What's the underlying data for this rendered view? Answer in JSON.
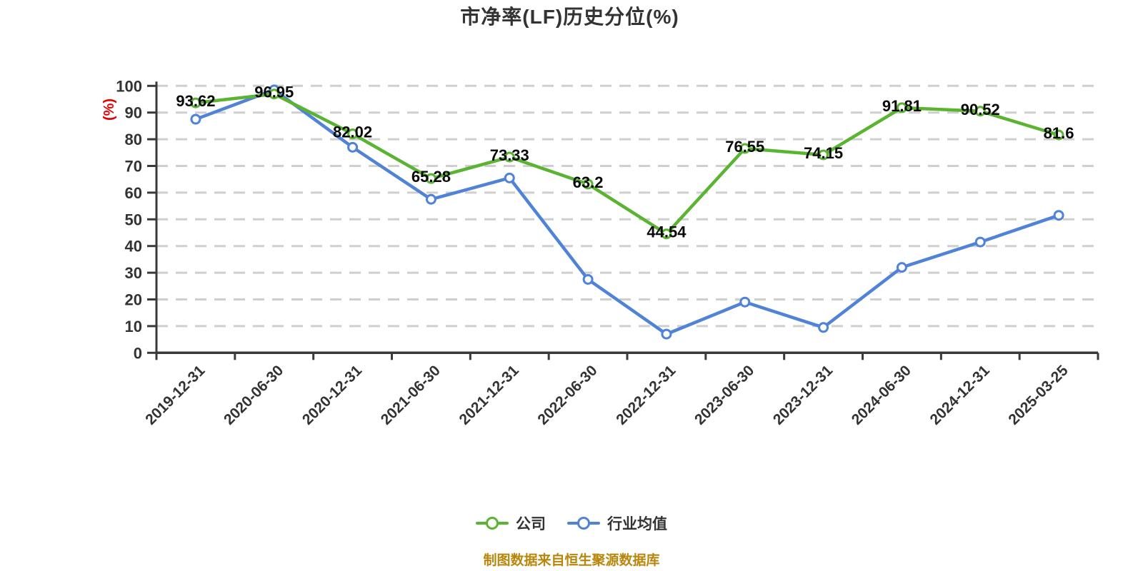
{
  "title": "市净率(LF)历史分位(%)",
  "y_axis_unit": "(%)",
  "footer": "制图数据来自恒生聚源数据库",
  "colors": {
    "company_line": "#5ab432",
    "industry_line": "#5083d8",
    "marker_fill": "#ffffff",
    "title_text": "#333333",
    "axis_line": "#3a3a3a",
    "tick_label": "#333333",
    "data_label": "#0a0a0a",
    "gridline": "#cfcfcf",
    "y_unit_text": "#e60000",
    "footer_text": "#b8860b",
    "background": "#ffffff"
  },
  "chart_data": {
    "type": "line",
    "title": "市净率(LF)历史分位(%)",
    "ylabel": "(%)",
    "ylim": [
      0,
      100
    ],
    "y_ticks": [
      0,
      10,
      20,
      30,
      40,
      50,
      60,
      70,
      80,
      90,
      100
    ],
    "grid": "horizontal-dashed",
    "legend_position": "bottom",
    "x_label_rotation": 45,
    "categories": [
      "2019-12-31",
      "2020-06-30",
      "2020-12-31",
      "2021-06-30",
      "2021-12-31",
      "2022-06-30",
      "2022-12-31",
      "2023-06-30",
      "2023-12-31",
      "2024-06-30",
      "2024-12-31",
      "2025-03-25"
    ],
    "series": [
      {
        "name": "公司",
        "color": "#5ab432",
        "values": [
          93.62,
          96.95,
          82.02,
          65.28,
          73.33,
          63.2,
          44.54,
          76.55,
          74.15,
          91.81,
          90.52,
          81.6
        ],
        "point_labels": [
          "93.62",
          "96.95",
          "82.02",
          "65.28",
          "73.33",
          "63.2",
          "44.54",
          "76.55",
          "74.15",
          "91.81",
          "90.52",
          "81.6"
        ]
      },
      {
        "name": "行业均值",
        "color": "#5083d8",
        "values": [
          87.5,
          98.5,
          77,
          57.5,
          65.5,
          27.5,
          7,
          19,
          9.5,
          32,
          41.5,
          51.5
        ],
        "point_labels": []
      }
    ]
  }
}
